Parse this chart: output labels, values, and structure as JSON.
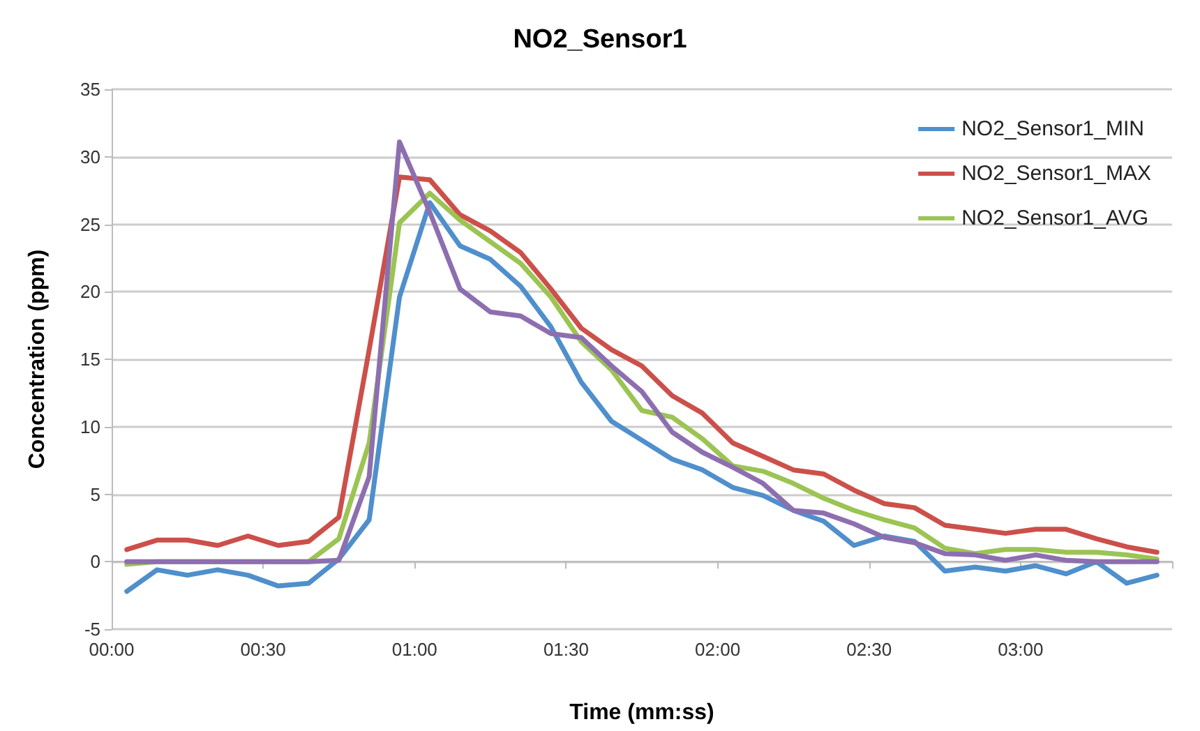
{
  "chart_data": {
    "type": "line",
    "title": "NO2_Sensor1",
    "xlabel": "Time (mm:ss)",
    "ylabel": "Concentration (ppm)",
    "x": [
      3,
      9,
      15,
      21,
      27,
      33,
      39,
      45,
      51,
      57,
      63,
      69,
      75,
      81,
      87,
      93,
      99,
      105,
      111,
      117,
      123,
      129,
      135,
      141,
      147,
      153,
      159,
      165,
      171,
      177,
      183,
      189,
      195,
      201,
      207
    ],
    "xlim": [
      0,
      210
    ],
    "xticks": [
      {
        "value": 0,
        "label": "00:00"
      },
      {
        "value": 30,
        "label": "00:30"
      },
      {
        "value": 60,
        "label": "01:00"
      },
      {
        "value": 90,
        "label": "01:30"
      },
      {
        "value": 120,
        "label": "02:00"
      },
      {
        "value": 150,
        "label": "02:30"
      },
      {
        "value": 180,
        "label": "03:00"
      },
      {
        "value": 210,
        "label": null
      }
    ],
    "ylim": [
      -5,
      35
    ],
    "yticks": [
      -5,
      0,
      5,
      10,
      15,
      20,
      25,
      30,
      35
    ],
    "series": [
      {
        "name": "NO2_Sensor1_MIN",
        "color": "#4f8fcc",
        "values": [
          -2.2,
          -0.6,
          -1.0,
          -0.6,
          -1.0,
          -1.8,
          -1.6,
          0.2,
          3.1,
          19.6,
          26.6,
          23.4,
          22.4,
          20.4,
          17.4,
          13.3,
          10.4,
          9.0,
          7.6,
          6.8,
          5.5,
          4.9,
          3.8,
          3.0,
          1.2,
          1.9,
          1.5,
          -0.7,
          -0.4,
          -0.7,
          -0.3,
          -0.9,
          0.0,
          -1.6,
          -1.0
        ]
      },
      {
        "name": "NO2_Sensor1_MAX",
        "color": "#cc504a",
        "values": [
          0.9,
          1.6,
          1.6,
          1.2,
          1.9,
          1.2,
          1.5,
          3.3,
          15.7,
          28.5,
          28.3,
          25.7,
          24.5,
          22.9,
          20.2,
          17.3,
          15.7,
          14.5,
          12.3,
          11.0,
          8.8,
          7.8,
          6.8,
          6.5,
          5.3,
          4.3,
          4.0,
          2.7,
          2.4,
          2.1,
          2.4,
          2.4,
          1.7,
          1.1,
          0.7
        ]
      },
      {
        "name": "NO2_Sensor1_AVG",
        "color": "#9bc453",
        "values": [
          -0.2,
          0,
          0,
          0,
          0,
          0,
          0,
          1.7,
          8.8,
          25.1,
          27.3,
          25.3,
          23.7,
          22.1,
          19.6,
          16.3,
          14.2,
          11.2,
          10.7,
          9.1,
          7.1,
          6.7,
          5.8,
          4.7,
          3.8,
          3.1,
          2.5,
          1.0,
          0.6,
          0.9,
          0.9,
          0.7,
          0.7,
          0.5,
          0.2
        ]
      },
      {
        "color": "#8d6fb0",
        "values": [
          0,
          0,
          0,
          0,
          0,
          0,
          0,
          0.1,
          6.3,
          31.1,
          25.9,
          20.2,
          18.5,
          18.2,
          16.9,
          16.6,
          14.5,
          12.6,
          9.6,
          8.1,
          7.0,
          5.8,
          3.8,
          3.6,
          2.8,
          1.8,
          1.4,
          0.6,
          0.5,
          0.1,
          0.5,
          0.1,
          0,
          0,
          0
        ]
      }
    ],
    "grid": "y",
    "legend": "top right",
    "marker": "none",
    "line_style": "solid"
  }
}
